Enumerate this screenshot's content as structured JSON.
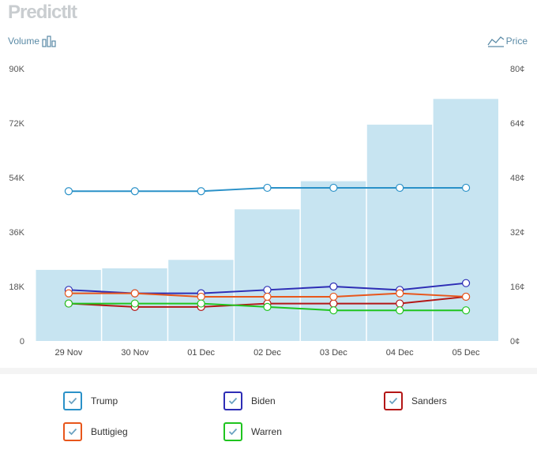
{
  "header": {
    "logo_text": "PredictIt",
    "volume_label": "Volume",
    "price_label": "Price"
  },
  "chart_data": {
    "type": "bar+line",
    "categories": [
      "29 Nov",
      "30 Nov",
      "01 Dec",
      "02 Dec",
      "03 Dec",
      "04 Dec",
      "05 Dec"
    ],
    "volume": {
      "name": "Volume",
      "axis": "left",
      "values": [
        23500,
        24000,
        26800,
        43500,
        52800,
        71500,
        80000
      ],
      "color": "#c7e4f1"
    },
    "left_axis": {
      "ticks": [
        "0",
        "18K",
        "36K",
        "54K",
        "72K",
        "90K"
      ],
      "range": [
        0,
        90000
      ]
    },
    "right_axis": {
      "ticks": [
        "0¢",
        "16¢",
        "32¢",
        "48¢",
        "64¢",
        "80¢"
      ],
      "range": [
        0,
        80
      ]
    },
    "series": [
      {
        "name": "Trump",
        "color": "#2a91c8",
        "values": [
          44,
          44,
          44,
          45,
          45,
          45,
          45
        ]
      },
      {
        "name": "Biden",
        "color": "#2d2db5",
        "values": [
          15,
          14,
          14,
          15,
          16,
          15,
          17
        ]
      },
      {
        "name": "Sanders",
        "color": "#b31616",
        "values": [
          11,
          10,
          10,
          11,
          11,
          11,
          13
        ]
      },
      {
        "name": "Buttigieg",
        "color": "#e8561b",
        "values": [
          14,
          14,
          13,
          13,
          13,
          14,
          13
        ]
      },
      {
        "name": "Warren",
        "color": "#1fc41f",
        "values": [
          11,
          11,
          11,
          10,
          9,
          9,
          9
        ]
      }
    ],
    "legend_position": "bottom",
    "grid": false
  },
  "legend": {
    "items": [
      {
        "label": "Trump",
        "color": "#2a91c8",
        "checked": true
      },
      {
        "label": "Biden",
        "color": "#2d2db5",
        "checked": true
      },
      {
        "label": "Sanders",
        "color": "#b31616",
        "checked": true
      },
      {
        "label": "Buttigieg",
        "color": "#e8561b",
        "checked": true
      },
      {
        "label": "Warren",
        "color": "#1fc41f",
        "checked": true
      }
    ]
  }
}
